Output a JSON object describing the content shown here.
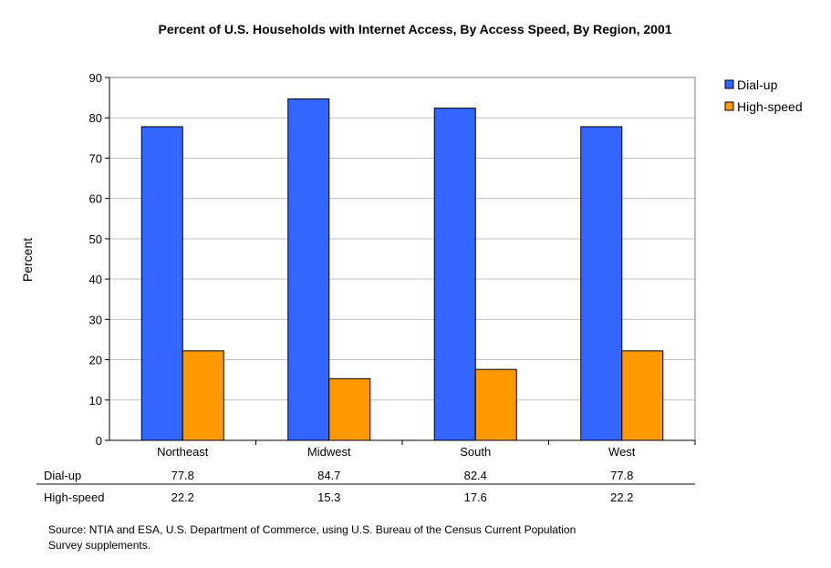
{
  "chart_data": {
    "type": "bar",
    "title": "Percent of U.S. Households with Internet Access, By Access Speed, By Region, 2001",
    "xlabel": "",
    "ylabel": "Percent",
    "ylim": [
      0,
      90
    ],
    "yticks": [
      0,
      10,
      20,
      30,
      40,
      50,
      60,
      70,
      80,
      90
    ],
    "grid": true,
    "legend": "right",
    "categories": [
      "Northeast",
      "Midwest",
      "South",
      "West"
    ],
    "series": [
      {
        "name": "Dial-up",
        "color": "#3366FF",
        "values": [
          77.8,
          84.7,
          82.4,
          77.8
        ]
      },
      {
        "name": "High-speed",
        "color": "#FF9900",
        "values": [
          22.2,
          15.3,
          17.6,
          22.2
        ]
      }
    ],
    "data_table": true,
    "source": [
      "Source:  NTIA and ESA, U.S. Department of Commerce, using  U.S. Bureau of the Census Current Population",
      "Survey supplements."
    ]
  }
}
